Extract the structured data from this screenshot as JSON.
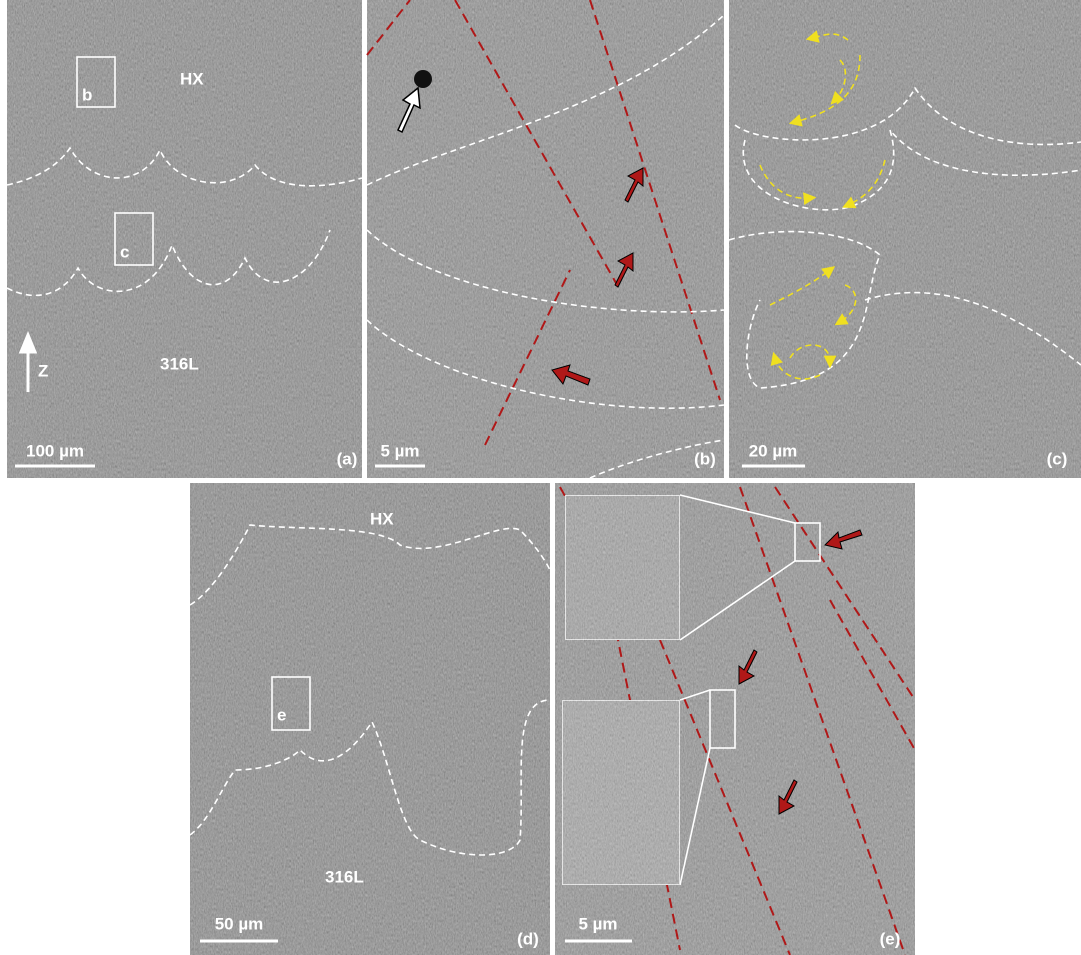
{
  "panels": [
    {
      "label": "(a)",
      "scale_bar": "100 µm",
      "annotations": [
        "HX",
        "316L",
        "b",
        "c",
        "Z"
      ]
    },
    {
      "label": "(b)",
      "scale_bar": "5 µm"
    },
    {
      "label": "(c)",
      "scale_bar": "20 µm"
    },
    {
      "label": "(d)",
      "scale_bar": "50 µm",
      "annotations": [
        "HX",
        "316L",
        "e"
      ]
    },
    {
      "label": "(e)",
      "scale_bar": "5 µm"
    }
  ]
}
